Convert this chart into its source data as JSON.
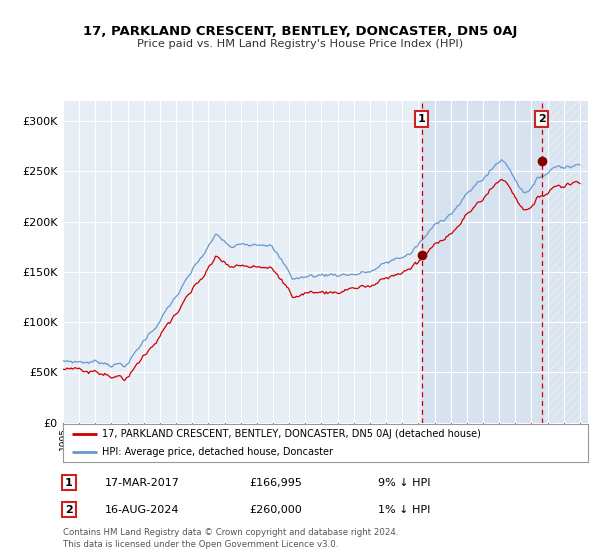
{
  "title": "17, PARKLAND CRESCENT, BENTLEY, DONCASTER, DN5 0AJ",
  "subtitle": "Price paid vs. HM Land Registry's House Price Index (HPI)",
  "legend_line1": "17, PARKLAND CRESCENT, BENTLEY, DONCASTER, DN5 0AJ (detached house)",
  "legend_line2": "HPI: Average price, detached house, Doncaster",
  "sale1_date": "17-MAR-2017",
  "sale1_price": 166995,
  "sale1_label": "9% ↓ HPI",
  "sale2_date": "16-AUG-2024",
  "sale2_price": 260000,
  "sale2_label": "1% ↓ HPI",
  "footer": "Contains HM Land Registry data © Crown copyright and database right 2024.\nThis data is licensed under the Open Government Licence v3.0.",
  "ylim": [
    0,
    320000
  ],
  "yticks": [
    0,
    50000,
    100000,
    150000,
    200000,
    250000,
    300000
  ],
  "sale1_year": 2017.21,
  "sale2_year": 2024.63,
  "xmin": 1995,
  "xmax": 2027.5,
  "line_color_red": "#cc0000",
  "line_color_blue": "#6699cc",
  "plot_bg_color": "#e8eef5",
  "fig_bg_color": "#ffffff",
  "grid_color": "#ffffff",
  "dashed_color": "#cc0000",
  "marker_color": "#880000",
  "shade_color": "#c8d8ee",
  "hatch_color": "#b8c8de"
}
